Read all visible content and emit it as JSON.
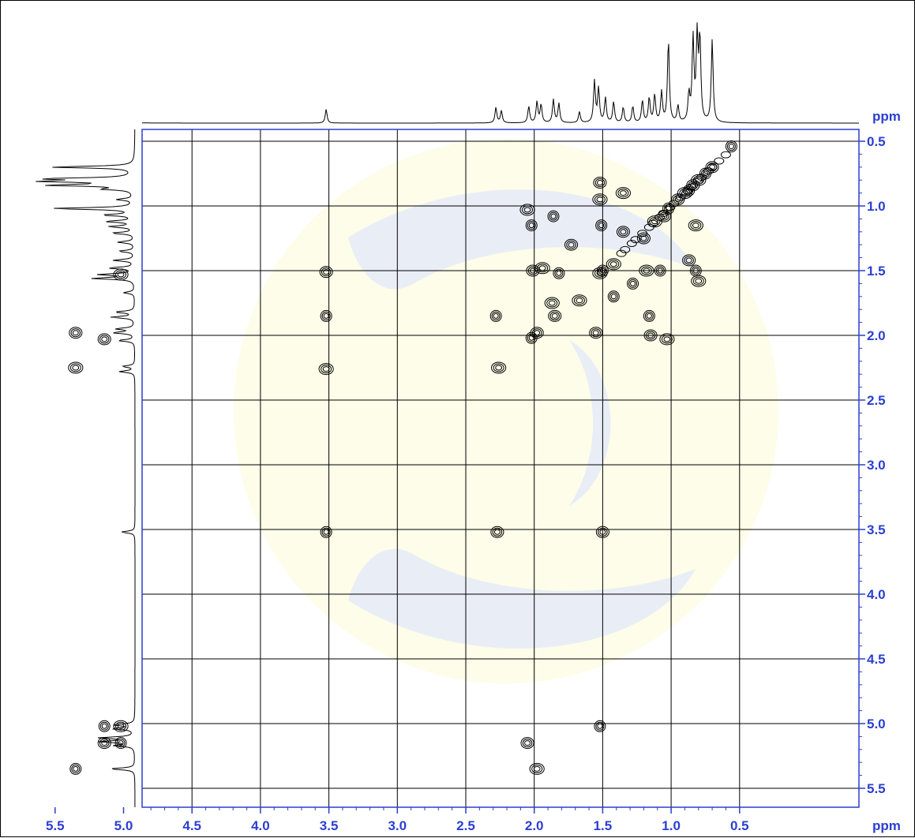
{
  "colors": {
    "axis": "#2b3fd1",
    "grid": "#000000",
    "contour": "#000000",
    "watermark": "#e9eef6"
  },
  "chart_data": {
    "type": "heatmap",
    "subtype": "2D NMR COSY contour plot",
    "title": "",
    "x_axis": {
      "ticks": [
        "5.5",
        "5.0",
        "4.5",
        "4.0",
        "3.5",
        "3.0",
        "2.5",
        "2.0",
        "1.5",
        "1.0",
        "0.5"
      ],
      "unit": "ppm",
      "range": [
        5.6,
        0.4
      ],
      "reversed": true
    },
    "y_axis": {
      "ticks": [
        "0.5",
        "1.0",
        "1.5",
        "2.0",
        "2.5",
        "3.0",
        "3.5",
        "4.0",
        "4.5",
        "5.0",
        "5.5"
      ],
      "unit": "ppm",
      "range": [
        0.45,
        5.55
      ],
      "position": "right"
    },
    "grid": true,
    "projections": "1D spectrum on top and left",
    "spectrum_peaks": [
      {
        "ppm": 5.35,
        "intensity": 0.45
      },
      {
        "ppm": 5.17,
        "intensity": 0.35
      },
      {
        "ppm": 5.14,
        "intensity": 0.6
      },
      {
        "ppm": 5.11,
        "intensity": 0.62
      },
      {
        "ppm": 5.04,
        "intensity": 0.4
      },
      {
        "ppm": 5.01,
        "intensity": 0.38
      },
      {
        "ppm": 3.52,
        "intensity": 0.25
      },
      {
        "ppm": 2.28,
        "intensity": 0.28
      },
      {
        "ppm": 2.24,
        "intensity": 0.22
      },
      {
        "ppm": 2.04,
        "intensity": 0.3
      },
      {
        "ppm": 1.98,
        "intensity": 0.38
      },
      {
        "ppm": 1.95,
        "intensity": 0.33
      },
      {
        "ppm": 1.86,
        "intensity": 0.42
      },
      {
        "ppm": 1.82,
        "intensity": 0.35
      },
      {
        "ppm": 1.67,
        "intensity": 0.2
      },
      {
        "ppm": 1.56,
        "intensity": 0.75
      },
      {
        "ppm": 1.53,
        "intensity": 0.62
      },
      {
        "ppm": 1.48,
        "intensity": 0.45
      },
      {
        "ppm": 1.42,
        "intensity": 0.38
      },
      {
        "ppm": 1.35,
        "intensity": 0.28
      },
      {
        "ppm": 1.28,
        "intensity": 0.3
      },
      {
        "ppm": 1.21,
        "intensity": 0.4
      },
      {
        "ppm": 1.16,
        "intensity": 0.45
      },
      {
        "ppm": 1.12,
        "intensity": 0.5
      },
      {
        "ppm": 1.07,
        "intensity": 0.55
      },
      {
        "ppm": 1.02,
        "intensity": 1.5
      },
      {
        "ppm": 0.95,
        "intensity": 0.3
      },
      {
        "ppm": 0.87,
        "intensity": 0.5
      },
      {
        "ppm": 0.84,
        "intensity": 1.5
      },
      {
        "ppm": 0.81,
        "intensity": 1.5
      },
      {
        "ppm": 0.79,
        "intensity": 1.5
      },
      {
        "ppm": 0.7,
        "intensity": 1.5
      }
    ],
    "cross_peaks": [
      {
        "x": 5.35,
        "y": 5.35
      },
      {
        "x": 5.35,
        "y": 1.98
      },
      {
        "x": 5.35,
        "y": 2.25
      },
      {
        "x": 5.14,
        "y": 5.02
      },
      {
        "x": 5.14,
        "y": 5.15
      },
      {
        "x": 5.02,
        "y": 5.02
      },
      {
        "x": 5.02,
        "y": 5.15
      },
      {
        "x": 5.14,
        "y": 2.03
      },
      {
        "x": 5.02,
        "y": 1.53
      },
      {
        "x": 3.52,
        "y": 3.52
      },
      {
        "x": 3.52,
        "y": 1.51
      },
      {
        "x": 3.52,
        "y": 2.26
      },
      {
        "x": 3.52,
        "y": 1.85
      },
      {
        "x": 2.27,
        "y": 3.52
      },
      {
        "x": 2.26,
        "y": 2.25
      },
      {
        "x": 2.28,
        "y": 1.85
      },
      {
        "x": 2.05,
        "y": 5.15
      },
      {
        "x": 1.98,
        "y": 5.35
      },
      {
        "x": 2.02,
        "y": 2.02
      },
      {
        "x": 1.98,
        "y": 1.98
      },
      {
        "x": 2.05,
        "y": 1.03
      },
      {
        "x": 2.02,
        "y": 1.15
      },
      {
        "x": 2.01,
        "y": 1.5
      },
      {
        "x": 1.94,
        "y": 1.48
      },
      {
        "x": 1.86,
        "y": 1.08
      },
      {
        "x": 1.85,
        "y": 1.85
      },
      {
        "x": 1.87,
        "y": 1.75
      },
      {
        "x": 1.82,
        "y": 1.52
      },
      {
        "x": 1.73,
        "y": 1.3
      },
      {
        "x": 1.67,
        "y": 1.73
      },
      {
        "x": 1.52,
        "y": 5.02
      },
      {
        "x": 1.5,
        "y": 3.52
      },
      {
        "x": 1.52,
        "y": 1.52
      },
      {
        "x": 1.5,
        "y": 1.5
      },
      {
        "x": 1.55,
        "y": 1.98
      },
      {
        "x": 1.52,
        "y": 0.95
      },
      {
        "x": 1.51,
        "y": 1.15
      },
      {
        "x": 1.52,
        "y": 0.82
      },
      {
        "x": 1.42,
        "y": 1.45
      },
      {
        "x": 1.42,
        "y": 1.7
      },
      {
        "x": 1.35,
        "y": 1.2
      },
      {
        "x": 1.35,
        "y": 0.9
      },
      {
        "x": 1.28,
        "y": 1.6
      },
      {
        "x": 1.2,
        "y": 1.25
      },
      {
        "x": 1.18,
        "y": 1.5
      },
      {
        "x": 1.16,
        "y": 1.85
      },
      {
        "x": 1.15,
        "y": 2.0
      },
      {
        "x": 1.12,
        "y": 1.12
      },
      {
        "x": 1.08,
        "y": 1.5
      },
      {
        "x": 1.05,
        "y": 1.08
      },
      {
        "x": 1.03,
        "y": 2.03
      },
      {
        "x": 1.02,
        "y": 1.02
      },
      {
        "x": 0.95,
        "y": 0.95
      },
      {
        "x": 0.9,
        "y": 0.9
      },
      {
        "x": 0.87,
        "y": 0.88
      },
      {
        "x": 0.84,
        "y": 0.84
      },
      {
        "x": 0.8,
        "y": 0.8
      },
      {
        "x": 0.75,
        "y": 0.75
      },
      {
        "x": 0.7,
        "y": 0.7
      },
      {
        "x": 0.82,
        "y": 1.15
      },
      {
        "x": 0.82,
        "y": 1.5
      },
      {
        "x": 0.87,
        "y": 1.42
      },
      {
        "x": 0.8,
        "y": 1.58
      },
      {
        "x": 0.56,
        "y": 0.54
      }
    ]
  }
}
